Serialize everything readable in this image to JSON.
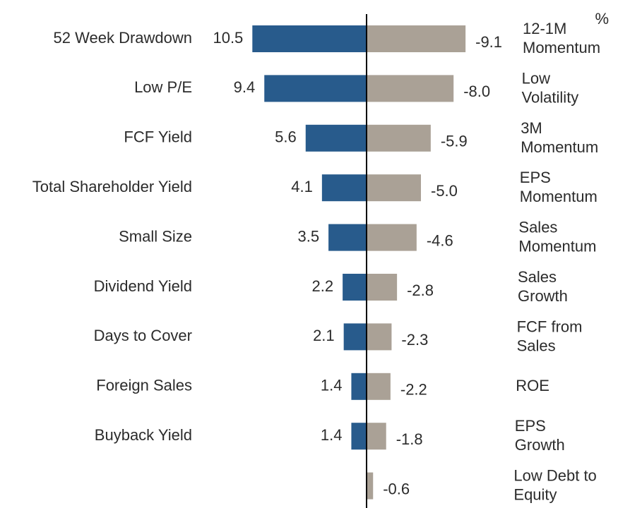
{
  "chart_data": {
    "type": "diverging_bar",
    "unit": "%",
    "series": [
      {
        "color": "#285b8c",
        "categories": [
          "52 Week Drawdown",
          "Low P/E",
          "FCF Yield",
          "Total Shareholder Yield",
          "Small Size",
          "Dividend Yield",
          "Days to Cover",
          "Foreign Sales",
          "Buyback Yield",
          null
        ],
        "values": [
          10.5,
          9.4,
          5.6,
          4.1,
          3.5,
          2.2,
          2.1,
          1.4,
          1.4,
          null
        ]
      },
      {
        "color": "#aaa196",
        "categories": [
          [
            "12-1M",
            "Momentum"
          ],
          [
            "Low",
            "Volatility"
          ],
          [
            "3M",
            "Momentum"
          ],
          [
            "EPS",
            "Momentum"
          ],
          [
            "Sales",
            "Momentum"
          ],
          [
            "Sales",
            "Growth"
          ],
          [
            "FCF from",
            "Sales"
          ],
          [
            "ROE"
          ],
          [
            "EPS",
            "Growth"
          ],
          [
            "Low Debt to",
            "Equity"
          ]
        ],
        "values": [
          -9.1,
          -8.0,
          -5.9,
          -5.0,
          -4.6,
          -2.8,
          -2.3,
          -2.2,
          -1.8,
          -0.6
        ],
        "value_labels": [
          "-9.1",
          "-8.0",
          "-5.9",
          "-5.0",
          "-4.6",
          "-2.8",
          "-2.3",
          "-2.2",
          "-1.8",
          "-0.6"
        ]
      }
    ]
  }
}
